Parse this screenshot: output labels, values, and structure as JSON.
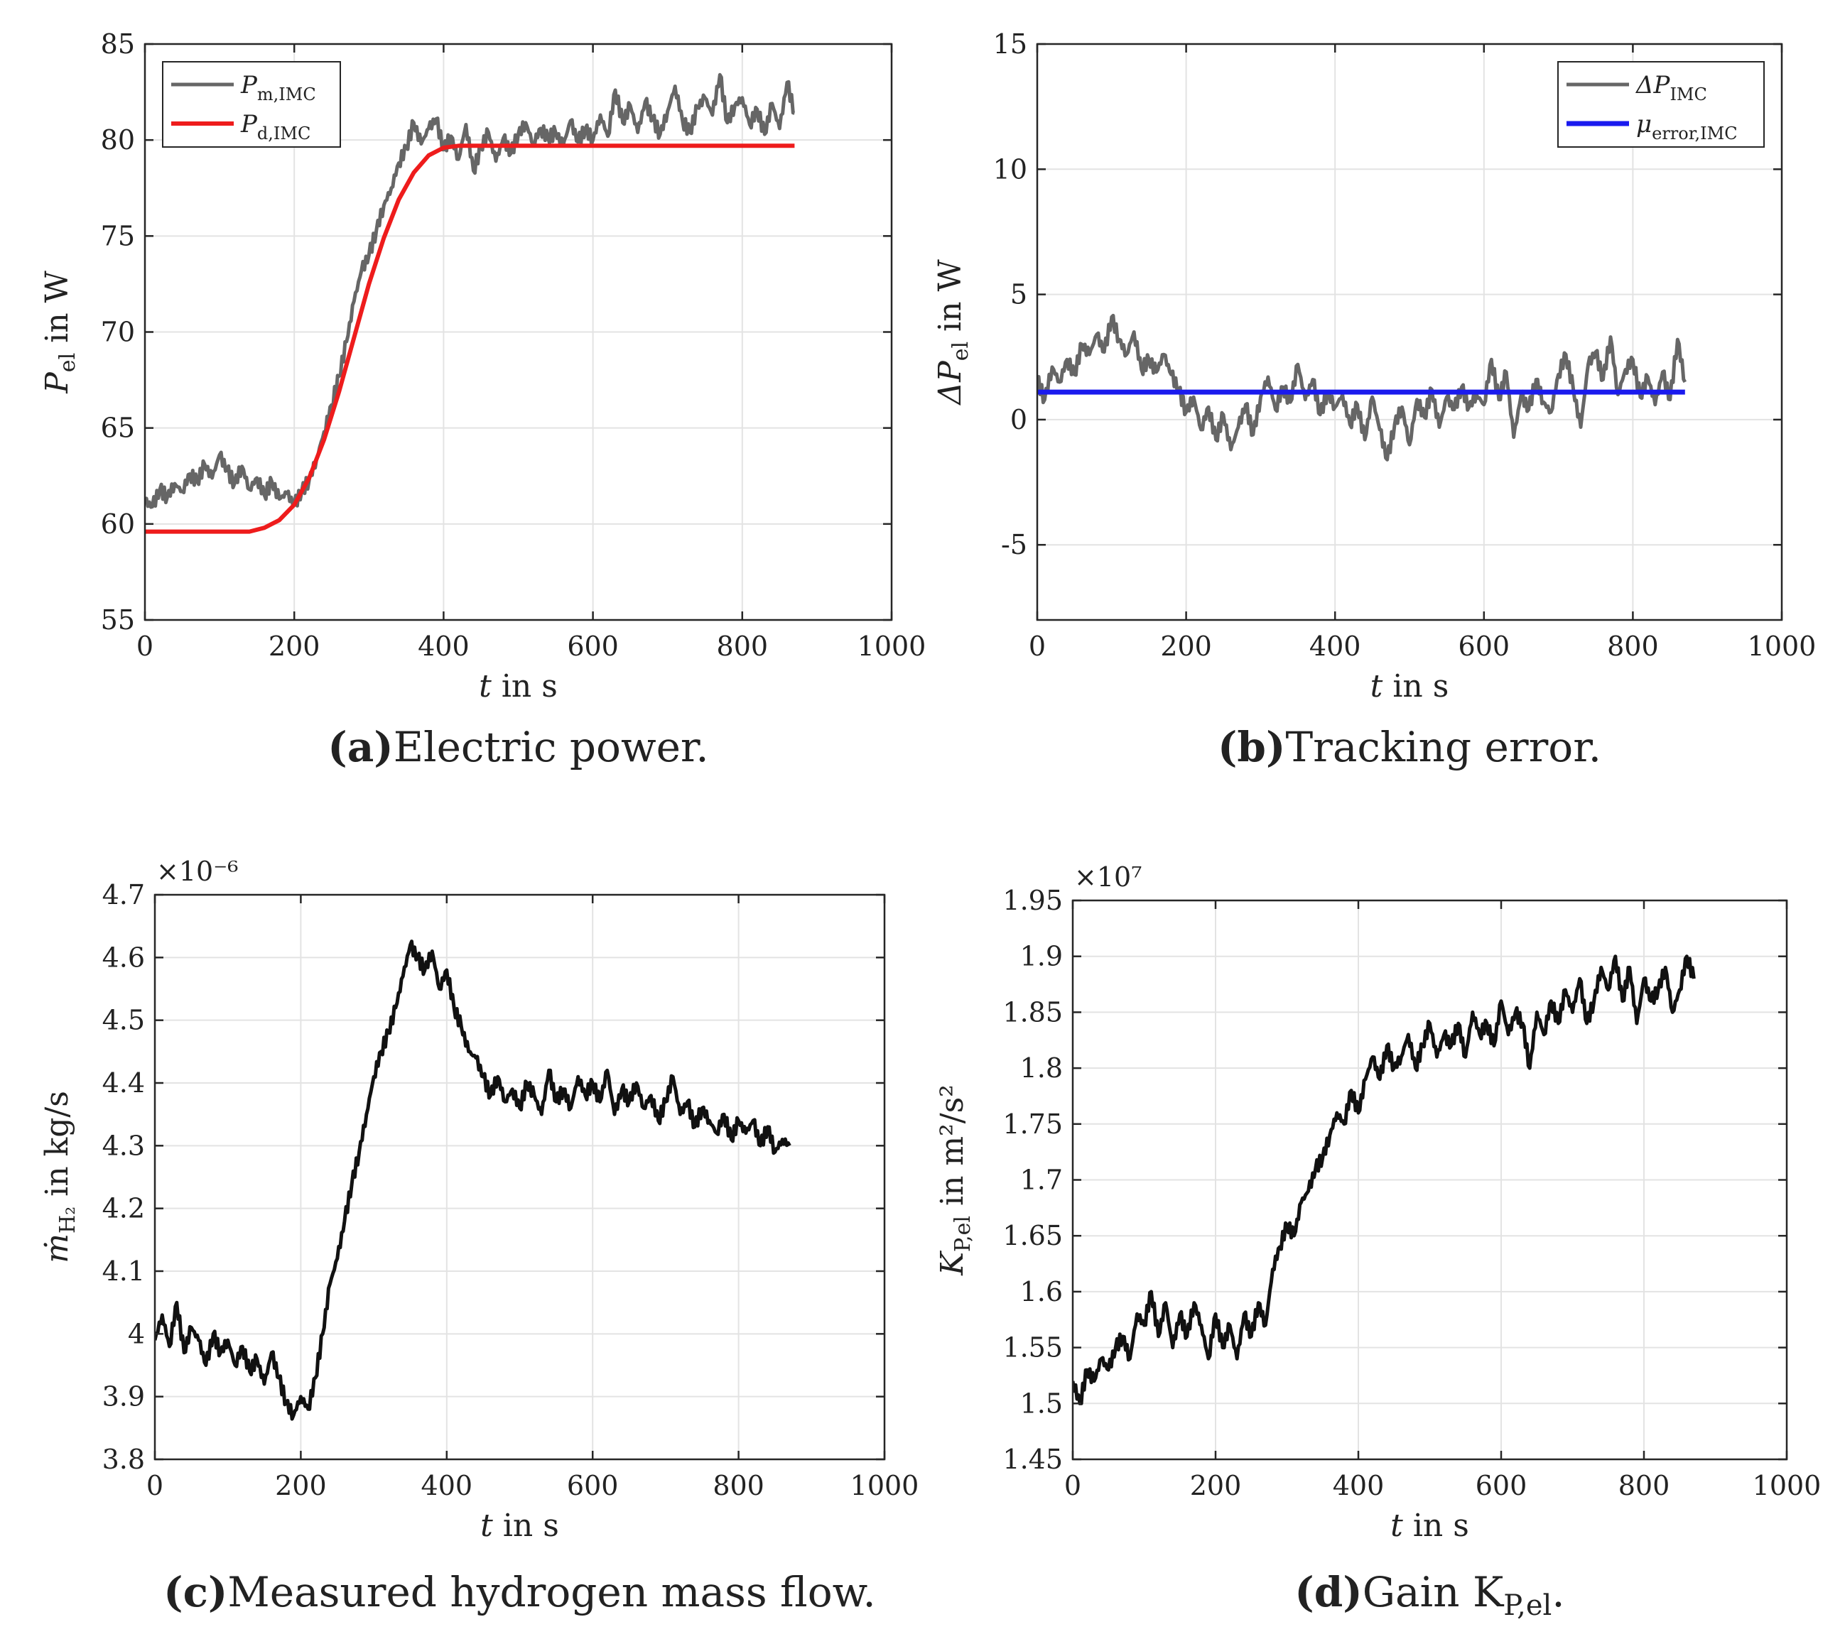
{
  "figure": {
    "panels": [
      "a",
      "b",
      "c",
      "d"
    ]
  },
  "chart_data": [
    {
      "id": "a",
      "type": "line",
      "caption_letter": "(a)",
      "caption_text": "Electric power.",
      "xlabel": "t in s",
      "ylabel": "P_el in W",
      "ylabel_main": "P",
      "ylabel_sub": "el",
      "ylabel_unit": " in W",
      "xlim": [
        0,
        1000
      ],
      "ylim": [
        55,
        85
      ],
      "xticks": [
        0,
        200,
        400,
        600,
        800,
        1000
      ],
      "yticks": [
        55,
        60,
        65,
        70,
        75,
        80,
        85
      ],
      "xtick_labels": [
        "0",
        "200",
        "400",
        "600",
        "800",
        "1000"
      ],
      "ytick_labels": [
        "55",
        "60",
        "65",
        "70",
        "75",
        "80",
        "85"
      ],
      "grid": true,
      "legend_position": "top-left",
      "series": [
        {
          "name": "P_m,IMC",
          "label_main": "P",
          "label_sub": "m,IMC",
          "color": "#666666",
          "width": 5,
          "t": [
            0,
            10,
            20,
            30,
            40,
            50,
            60,
            70,
            80,
            90,
            100,
            110,
            120,
            130,
            140,
            150,
            160,
            170,
            180,
            190,
            200,
            210,
            220,
            230,
            240,
            250,
            260,
            270,
            280,
            290,
            300,
            310,
            320,
            330,
            340,
            350,
            360,
            370,
            380,
            390,
            400,
            410,
            420,
            430,
            440,
            450,
            460,
            470,
            480,
            490,
            500,
            510,
            520,
            530,
            540,
            550,
            560,
            570,
            580,
            590,
            600,
            610,
            620,
            630,
            640,
            650,
            660,
            670,
            680,
            690,
            700,
            710,
            720,
            730,
            740,
            750,
            760,
            770,
            780,
            790,
            800,
            810,
            820,
            830,
            840,
            850,
            860,
            870
          ],
          "values": [
            61.2,
            60.9,
            61.8,
            61.4,
            62.1,
            61.7,
            62.6,
            62.2,
            63.1,
            62.4,
            63.6,
            62.8,
            62.1,
            63.0,
            61.8,
            62.4,
            61.5,
            62.2,
            61.3,
            61.6,
            61.0,
            61.7,
            62.3,
            63.4,
            64.8,
            66.2,
            67.7,
            69.5,
            71.6,
            73.2,
            74.0,
            75.3,
            76.6,
            77.5,
            78.8,
            79.6,
            80.9,
            79.8,
            80.6,
            81.1,
            79.5,
            80.2,
            79.0,
            80.8,
            78.4,
            79.6,
            80.4,
            78.9,
            80.1,
            79.3,
            80.3,
            80.9,
            79.8,
            80.6,
            80.1,
            80.4,
            79.7,
            81.0,
            79.9,
            80.6,
            80.0,
            81.3,
            80.2,
            82.6,
            80.9,
            81.8,
            80.4,
            82.0,
            81.1,
            80.3,
            81.5,
            82.8,
            81.0,
            80.4,
            81.7,
            82.2,
            81.3,
            83.4,
            80.9,
            81.8,
            82.2,
            80.8,
            81.6,
            80.3,
            81.9,
            80.6,
            83.0,
            81.4
          ]
        },
        {
          "name": "P_d,IMC",
          "label_main": "P",
          "label_sub": "d,IMC",
          "color": "#ee1c1c",
          "width": 6,
          "t": [
            0,
            20,
            40,
            60,
            80,
            100,
            120,
            140,
            160,
            180,
            200,
            220,
            240,
            260,
            280,
            300,
            320,
            340,
            360,
            380,
            400,
            420,
            440,
            460,
            480,
            500,
            600,
            700,
            800,
            870
          ],
          "values": [
            59.6,
            59.6,
            59.6,
            59.6,
            59.6,
            59.6,
            59.6,
            59.6,
            59.8,
            60.2,
            61.0,
            62.4,
            64.4,
            66.9,
            69.7,
            72.5,
            74.9,
            76.9,
            78.3,
            79.2,
            79.6,
            79.7,
            79.7,
            79.7,
            79.7,
            79.7,
            79.7,
            79.7,
            79.7,
            79.7
          ]
        }
      ]
    },
    {
      "id": "b",
      "type": "line",
      "caption_letter": "(b)",
      "caption_text": "Tracking error.",
      "xlabel": "t in s",
      "ylabel": "ΔP_el in W",
      "ylabel_main": "ΔP",
      "ylabel_sub": "el",
      "ylabel_unit": " in W",
      "xlim": [
        0,
        1000
      ],
      "ylim": [
        -8,
        15
      ],
      "xticks": [
        0,
        200,
        400,
        600,
        800,
        1000
      ],
      "yticks": [
        -5,
        0,
        5,
        10,
        15
      ],
      "xtick_labels": [
        "0",
        "200",
        "400",
        "600",
        "800",
        "1000"
      ],
      "ytick_labels": [
        "-5",
        "0",
        "5",
        "10",
        "15"
      ],
      "grid": true,
      "legend_position": "top-right",
      "series": [
        {
          "name": "ΔP_IMC",
          "label_main": "ΔP",
          "label_sub": "IMC",
          "color": "#666666",
          "width": 5,
          "t": [
            0,
            10,
            20,
            30,
            40,
            50,
            60,
            70,
            80,
            90,
            100,
            110,
            120,
            130,
            140,
            150,
            160,
            170,
            180,
            190,
            200,
            210,
            220,
            230,
            240,
            250,
            260,
            270,
            280,
            290,
            300,
            310,
            320,
            330,
            340,
            350,
            360,
            370,
            380,
            390,
            400,
            410,
            420,
            430,
            440,
            450,
            460,
            470,
            480,
            490,
            500,
            510,
            520,
            530,
            540,
            550,
            560,
            570,
            580,
            590,
            600,
            610,
            620,
            630,
            640,
            650,
            660,
            670,
            680,
            690,
            700,
            710,
            720,
            730,
            740,
            750,
            760,
            770,
            780,
            790,
            800,
            810,
            820,
            830,
            840,
            850,
            860,
            870
          ],
          "values": [
            1.6,
            0.8,
            2.1,
            1.5,
            2.4,
            1.8,
            3.0,
            2.6,
            3.4,
            2.7,
            4.1,
            3.2,
            2.6,
            3.5,
            2.0,
            2.4,
            1.9,
            2.6,
            1.8,
            1.2,
            0.3,
            0.9,
            -0.4,
            0.5,
            -0.8,
            0.2,
            -1.2,
            -0.3,
            0.6,
            -0.6,
            0.9,
            1.7,
            0.4,
            1.3,
            0.7,
            2.2,
            0.8,
            1.6,
            0.2,
            1.1,
            0.5,
            1.0,
            -0.2,
            0.6,
            -0.8,
            0.9,
            -0.4,
            -1.6,
            -0.2,
            0.5,
            -1.0,
            0.8,
            0.1,
            1.2,
            -0.3,
            0.9,
            0.4,
            1.3,
            0.5,
            1.0,
            0.6,
            2.4,
            0.8,
            1.9,
            -0.7,
            1.0,
            0.4,
            1.6,
            0.7,
            0.3,
            1.8,
            2.6,
            1.2,
            -0.3,
            2.2,
            2.7,
            1.6,
            3.3,
            1.0,
            2.0,
            2.4,
            0.9,
            1.7,
            0.6,
            1.9,
            0.8,
            3.2,
            1.5
          ]
        },
        {
          "name": "μ_error,IMC",
          "label_main": "μ",
          "label_sub": "error,IMC",
          "color": "#1a1aee",
          "width": 7,
          "t": [
            0,
            870
          ],
          "values": [
            1.1,
            1.1
          ]
        }
      ]
    },
    {
      "id": "c",
      "type": "line",
      "caption_letter": "(c)",
      "caption_text": "Measured hydrogen mass flow.",
      "xlabel": "t in s",
      "ylabel": "ṁ_H2 in kg/s",
      "ylabel_main": "ṁ",
      "ylabel_sub": "H₂",
      "ylabel_unit": " in kg/s",
      "exponent_label": "×10⁻⁶",
      "xlim": [
        0,
        1000
      ],
      "ylim": [
        3.8,
        4.7
      ],
      "xticks": [
        0,
        200,
        400,
        600,
        800,
        1000
      ],
      "yticks": [
        3.8,
        3.9,
        4.0,
        4.1,
        4.2,
        4.3,
        4.4,
        4.5,
        4.6,
        4.7
      ],
      "xtick_labels": [
        "0",
        "200",
        "400",
        "600",
        "800",
        "1000"
      ],
      "ytick_labels": [
        "3.8",
        "3.9",
        "4",
        "4.1",
        "4.2",
        "4.3",
        "4.4",
        "4.5",
        "4.6",
        "4.7"
      ],
      "grid": true,
      "series": [
        {
          "name": "ṁ_H2",
          "color": "#111111",
          "width": 5,
          "t": [
            0,
            10,
            20,
            30,
            40,
            50,
            60,
            70,
            80,
            90,
            100,
            110,
            120,
            130,
            140,
            150,
            160,
            170,
            180,
            190,
            200,
            210,
            220,
            230,
            240,
            250,
            260,
            270,
            280,
            290,
            300,
            310,
            320,
            330,
            340,
            350,
            360,
            370,
            380,
            390,
            400,
            410,
            420,
            430,
            440,
            450,
            460,
            470,
            480,
            490,
            500,
            510,
            520,
            530,
            540,
            550,
            560,
            570,
            580,
            590,
            600,
            610,
            620,
            630,
            640,
            650,
            660,
            670,
            680,
            690,
            700,
            710,
            720,
            730,
            740,
            750,
            760,
            770,
            780,
            790,
            800,
            810,
            820,
            830,
            840,
            850,
            860,
            870
          ],
          "values": [
            3.99,
            4.03,
            3.98,
            4.05,
            3.97,
            4.01,
            3.99,
            3.95,
            4.0,
            3.97,
            3.99,
            3.95,
            3.98,
            3.94,
            3.96,
            3.92,
            3.97,
            3.93,
            3.89,
            3.87,
            3.9,
            3.88,
            3.93,
            4.0,
            4.08,
            4.12,
            4.18,
            4.24,
            4.29,
            4.35,
            4.41,
            4.45,
            4.48,
            4.52,
            4.57,
            4.62,
            4.6,
            4.58,
            4.61,
            4.55,
            4.58,
            4.52,
            4.49,
            4.45,
            4.44,
            4.41,
            4.38,
            4.41,
            4.37,
            4.39,
            4.36,
            4.4,
            4.38,
            4.35,
            4.42,
            4.37,
            4.39,
            4.36,
            4.41,
            4.38,
            4.4,
            4.37,
            4.42,
            4.35,
            4.39,
            4.37,
            4.4,
            4.36,
            4.38,
            4.34,
            4.37,
            4.41,
            4.35,
            4.37,
            4.33,
            4.36,
            4.34,
            4.32,
            4.35,
            4.31,
            4.34,
            4.32,
            4.34,
            4.3,
            4.33,
            4.29,
            4.31,
            4.3
          ]
        }
      ]
    },
    {
      "id": "d",
      "type": "line",
      "caption_letter": "(d)",
      "caption_text": "Gain K",
      "caption_sub": "P,el",
      "caption_end": ".",
      "xlabel": "t in s",
      "ylabel": "K_P,el in m²/s²",
      "ylabel_main": "K",
      "ylabel_sub": "P,el",
      "ylabel_unit": " in m²/s²",
      "exponent_label": "×10⁷",
      "xlim": [
        0,
        1000
      ],
      "ylim": [
        1.45,
        1.95
      ],
      "xticks": [
        0,
        200,
        400,
        600,
        800,
        1000
      ],
      "yticks": [
        1.45,
        1.5,
        1.55,
        1.6,
        1.65,
        1.7,
        1.75,
        1.8,
        1.85,
        1.9,
        1.95
      ],
      "xtick_labels": [
        "0",
        "200",
        "400",
        "600",
        "800",
        "1000"
      ],
      "ytick_labels": [
        "1.45",
        "1.5",
        "1.55",
        "1.6",
        "1.65",
        "1.7",
        "1.75",
        "1.8",
        "1.85",
        "1.9",
        "1.95"
      ],
      "grid": true,
      "series": [
        {
          "name": "K_P,el",
          "color": "#111111",
          "width": 5,
          "t": [
            0,
            10,
            20,
            30,
            40,
            50,
            60,
            70,
            80,
            90,
            100,
            110,
            120,
            130,
            140,
            150,
            160,
            170,
            180,
            190,
            200,
            210,
            220,
            230,
            240,
            250,
            260,
            270,
            280,
            290,
            300,
            310,
            320,
            330,
            340,
            350,
            360,
            370,
            380,
            390,
            400,
            410,
            420,
            430,
            440,
            450,
            460,
            470,
            480,
            490,
            500,
            510,
            520,
            530,
            540,
            550,
            560,
            570,
            580,
            590,
            600,
            610,
            620,
            630,
            640,
            650,
            660,
            670,
            680,
            690,
            700,
            710,
            720,
            730,
            740,
            750,
            760,
            770,
            780,
            790,
            800,
            810,
            820,
            830,
            840,
            850,
            860,
            870
          ],
          "values": [
            1.52,
            1.5,
            1.53,
            1.52,
            1.54,
            1.53,
            1.55,
            1.56,
            1.54,
            1.58,
            1.57,
            1.6,
            1.56,
            1.59,
            1.55,
            1.58,
            1.56,
            1.59,
            1.57,
            1.54,
            1.58,
            1.55,
            1.57,
            1.54,
            1.58,
            1.56,
            1.59,
            1.57,
            1.62,
            1.64,
            1.66,
            1.65,
            1.68,
            1.69,
            1.71,
            1.72,
            1.74,
            1.76,
            1.75,
            1.78,
            1.76,
            1.79,
            1.81,
            1.79,
            1.82,
            1.8,
            1.81,
            1.83,
            1.8,
            1.82,
            1.84,
            1.81,
            1.83,
            1.82,
            1.84,
            1.81,
            1.85,
            1.83,
            1.84,
            1.82,
            1.86,
            1.83,
            1.85,
            1.84,
            1.8,
            1.85,
            1.83,
            1.86,
            1.84,
            1.87,
            1.85,
            1.88,
            1.84,
            1.86,
            1.89,
            1.87,
            1.9,
            1.86,
            1.89,
            1.84,
            1.88,
            1.86,
            1.87,
            1.89,
            1.85,
            1.87,
            1.9,
            1.88
          ]
        }
      ]
    }
  ]
}
